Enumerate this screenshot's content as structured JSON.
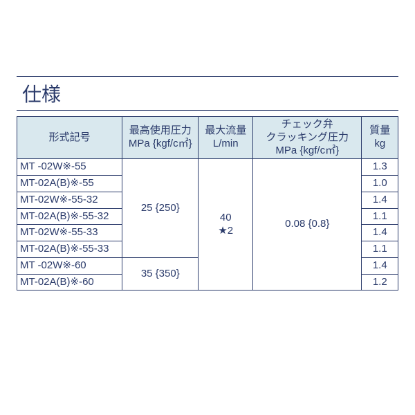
{
  "title": "仕様",
  "headers": {
    "model": "形式記号",
    "pressure": [
      "最高使用圧力",
      "MPa {kgf/c㎡}"
    ],
    "flow": [
      "最大流量",
      "L/min"
    ],
    "cracking": [
      "チェック弁",
      "クラッキング圧力",
      "MPa {kgf/c㎡}"
    ],
    "mass": [
      "質量",
      "kg"
    ]
  },
  "rows": [
    {
      "model": "MT -02W※-55",
      "mass": "1.3"
    },
    {
      "model": "MT-02A(B)※-55",
      "mass": "1.0"
    },
    {
      "model": "MT-02W※-55-32",
      "mass": "1.4"
    },
    {
      "model": "MT-02A(B)※-55-32",
      "mass": "1.1"
    },
    {
      "model": "MT-02W※-55-33",
      "mass": "1.4"
    },
    {
      "model": "MT-02A(B)※-55-33",
      "mass": "1.1"
    },
    {
      "model": "MT -02W※-60",
      "mass": "1.4"
    },
    {
      "model": "MT-02A(B)※-60",
      "mass": "1.2"
    }
  ],
  "pressure_groups": [
    {
      "span": 6,
      "value": "25 {250}"
    },
    {
      "span": 2,
      "value": "35 {350}"
    }
  ],
  "flow_cell": {
    "span": 8,
    "lines": [
      "40",
      "★2"
    ]
  },
  "cracking_cell": {
    "span": 8,
    "value": "0.08 {0.8}"
  },
  "colors": {
    "header_bg": "#d9e8ee",
    "border": "#2a3a6a",
    "text": "#2a3a6a",
    "page_bg": "#ffffff"
  }
}
